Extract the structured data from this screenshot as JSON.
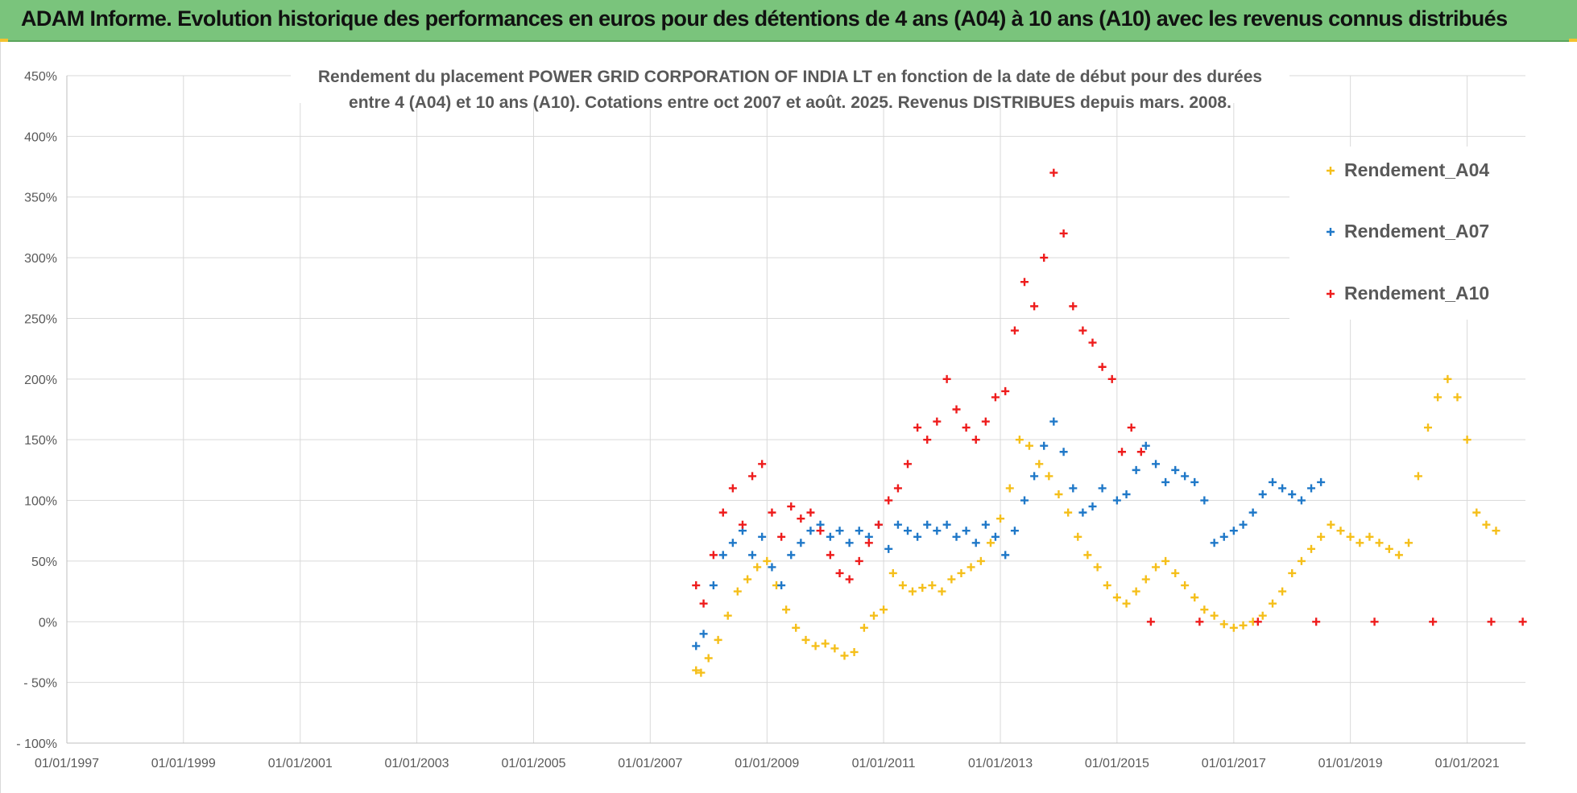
{
  "banner": {
    "title": "ADAM Informe. Evolution historique des performances en euros pour des détentions de 4 ans (A04) à 10 ans (A10) avec les revenus connus distribués"
  },
  "colors": {
    "banner_bg": "#7ac47c",
    "A04": "#f5bf1a",
    "A07": "#1f78c8",
    "A10": "#ee1c1c",
    "grid": "#d9d9d9",
    "text": "#595959"
  },
  "chart_data": {
    "type": "scatter",
    "title_lines": [
      "Rendement du placement POWER GRID CORPORATION OF INDIA LT en fonction de la date de début pour des durées",
      "entre 4 (A04) et 10 ans (A10).  Cotations entre oct 2007 et août. 2025. Revenus DISTRIBUES depuis mars. 2008."
    ],
    "x_axis": {
      "type": "date",
      "min": "1997-01-01",
      "max": "2022-01-01",
      "tick_labels": [
        "01/01/1997",
        "01/01/1999",
        "01/01/2001",
        "01/01/2003",
        "01/01/2005",
        "01/01/2007",
        "01/01/2009",
        "01/01/2011",
        "01/01/2013",
        "01/01/2015",
        "01/01/2017",
        "01/01/2019",
        "01/01/2021"
      ]
    },
    "y_axis": {
      "min": -100,
      "max": 450,
      "step": 50,
      "unit": "%",
      "tick_labels": [
        "- 100%",
        "- 50%",
        "0%",
        "50%",
        "100%",
        "150%",
        "200%",
        "250%",
        "300%",
        "350%",
        "400%",
        "450%"
      ]
    },
    "grid": true,
    "legend_position": "top-right",
    "series": [
      {
        "name": "Rendement_A04",
        "color": "#f5bf1a",
        "points": [
          [
            "2007-10-15",
            -40
          ],
          [
            "2007-11-15",
            -42
          ],
          [
            "2008-01-01",
            -30
          ],
          [
            "2008-03-01",
            -15
          ],
          [
            "2008-05-01",
            5
          ],
          [
            "2008-07-01",
            25
          ],
          [
            "2008-09-01",
            35
          ],
          [
            "2008-11-01",
            45
          ],
          [
            "2009-01-01",
            50
          ],
          [
            "2009-03-01",
            30
          ],
          [
            "2009-05-01",
            10
          ],
          [
            "2009-07-01",
            -5
          ],
          [
            "2009-09-01",
            -15
          ],
          [
            "2009-11-01",
            -20
          ],
          [
            "2010-01-01",
            -18
          ],
          [
            "2010-03-01",
            -22
          ],
          [
            "2010-05-01",
            -28
          ],
          [
            "2010-07-01",
            -25
          ],
          [
            "2010-09-01",
            -5
          ],
          [
            "2010-11-01",
            5
          ],
          [
            "2011-01-01",
            10
          ],
          [
            "2011-03-01",
            40
          ],
          [
            "2011-05-01",
            30
          ],
          [
            "2011-07-01",
            25
          ],
          [
            "2011-09-01",
            28
          ],
          [
            "2011-11-01",
            30
          ],
          [
            "2012-01-01",
            25
          ],
          [
            "2012-03-01",
            35
          ],
          [
            "2012-05-01",
            40
          ],
          [
            "2012-07-01",
            45
          ],
          [
            "2012-09-01",
            50
          ],
          [
            "2012-11-01",
            65
          ],
          [
            "2013-01-01",
            85
          ],
          [
            "2013-03-01",
            110
          ],
          [
            "2013-05-01",
            150
          ],
          [
            "2013-07-01",
            145
          ],
          [
            "2013-09-01",
            130
          ],
          [
            "2013-11-01",
            120
          ],
          [
            "2014-01-01",
            105
          ],
          [
            "2014-03-01",
            90
          ],
          [
            "2014-05-01",
            70
          ],
          [
            "2014-07-01",
            55
          ],
          [
            "2014-09-01",
            45
          ],
          [
            "2014-11-01",
            30
          ],
          [
            "2015-01-01",
            20
          ],
          [
            "2015-03-01",
            15
          ],
          [
            "2015-05-01",
            25
          ],
          [
            "2015-07-01",
            35
          ],
          [
            "2015-09-01",
            45
          ],
          [
            "2015-11-01",
            50
          ],
          [
            "2016-01-01",
            40
          ],
          [
            "2016-03-01",
            30
          ],
          [
            "2016-05-01",
            20
          ],
          [
            "2016-07-01",
            10
          ],
          [
            "2016-09-01",
            5
          ],
          [
            "2016-11-01",
            -2
          ],
          [
            "2017-01-01",
            -5
          ],
          [
            "2017-03-01",
            -3
          ],
          [
            "2017-05-01",
            0
          ],
          [
            "2017-07-01",
            5
          ],
          [
            "2017-09-01",
            15
          ],
          [
            "2017-11-01",
            25
          ],
          [
            "2018-01-01",
            40
          ],
          [
            "2018-03-01",
            50
          ],
          [
            "2018-05-01",
            60
          ],
          [
            "2018-07-01",
            70
          ],
          [
            "2018-09-01",
            80
          ],
          [
            "2018-11-01",
            75
          ],
          [
            "2019-01-01",
            70
          ],
          [
            "2019-03-01",
            65
          ],
          [
            "2019-05-01",
            70
          ],
          [
            "2019-07-01",
            65
          ],
          [
            "2019-09-01",
            60
          ],
          [
            "2019-11-01",
            55
          ],
          [
            "2020-01-01",
            65
          ],
          [
            "2020-03-01",
            120
          ],
          [
            "2020-05-01",
            160
          ],
          [
            "2020-07-01",
            185
          ],
          [
            "2020-09-01",
            200
          ],
          [
            "2020-11-01",
            185
          ],
          [
            "2021-01-01",
            150
          ],
          [
            "2021-03-01",
            90
          ],
          [
            "2021-05-01",
            80
          ],
          [
            "2021-07-01",
            75
          ]
        ]
      },
      {
        "name": "Rendement_A07",
        "color": "#1f78c8",
        "points": [
          [
            "2007-10-15",
            -20
          ],
          [
            "2007-12-01",
            -10
          ],
          [
            "2008-02-01",
            30
          ],
          [
            "2008-04-01",
            55
          ],
          [
            "2008-06-01",
            65
          ],
          [
            "2008-08-01",
            75
          ],
          [
            "2008-10-01",
            55
          ],
          [
            "2008-12-01",
            70
          ],
          [
            "2009-02-01",
            45
          ],
          [
            "2009-04-01",
            30
          ],
          [
            "2009-06-01",
            55
          ],
          [
            "2009-08-01",
            65
          ],
          [
            "2009-10-01",
            75
          ],
          [
            "2009-12-01",
            80
          ],
          [
            "2010-02-01",
            70
          ],
          [
            "2010-04-01",
            75
          ],
          [
            "2010-06-01",
            65
          ],
          [
            "2010-08-01",
            75
          ],
          [
            "2010-10-01",
            70
          ],
          [
            "2010-12-01",
            80
          ],
          [
            "2011-02-01",
            60
          ],
          [
            "2011-04-01",
            80
          ],
          [
            "2011-06-01",
            75
          ],
          [
            "2011-08-01",
            70
          ],
          [
            "2011-10-01",
            80
          ],
          [
            "2011-12-01",
            75
          ],
          [
            "2012-02-01",
            80
          ],
          [
            "2012-04-01",
            70
          ],
          [
            "2012-06-01",
            75
          ],
          [
            "2012-08-01",
            65
          ],
          [
            "2012-10-01",
            80
          ],
          [
            "2012-12-01",
            70
          ],
          [
            "2013-02-01",
            55
          ],
          [
            "2013-04-01",
            75
          ],
          [
            "2013-06-01",
            100
          ],
          [
            "2013-08-01",
            120
          ],
          [
            "2013-10-01",
            145
          ],
          [
            "2013-12-01",
            165
          ],
          [
            "2014-02-01",
            140
          ],
          [
            "2014-04-01",
            110
          ],
          [
            "2014-06-01",
            90
          ],
          [
            "2014-08-01",
            95
          ],
          [
            "2014-10-01",
            110
          ],
          [
            "2015-01-01",
            100
          ],
          [
            "2015-03-01",
            105
          ],
          [
            "2015-05-01",
            125
          ],
          [
            "2015-07-01",
            145
          ],
          [
            "2015-09-01",
            130
          ],
          [
            "2015-11-01",
            115
          ],
          [
            "2016-01-01",
            125
          ],
          [
            "2016-03-01",
            120
          ],
          [
            "2016-05-01",
            115
          ],
          [
            "2016-07-01",
            100
          ],
          [
            "2016-09-01",
            65
          ],
          [
            "2016-11-01",
            70
          ],
          [
            "2017-01-01",
            75
          ],
          [
            "2017-03-01",
            80
          ],
          [
            "2017-05-01",
            90
          ],
          [
            "2017-07-01",
            105
          ],
          [
            "2017-09-01",
            115
          ],
          [
            "2017-11-01",
            110
          ],
          [
            "2018-01-01",
            105
          ],
          [
            "2018-03-01",
            100
          ],
          [
            "2018-05-01",
            110
          ],
          [
            "2018-07-01",
            115
          ]
        ]
      },
      {
        "name": "Rendement_A10",
        "color": "#ee1c1c",
        "points": [
          [
            "2007-10-15",
            30
          ],
          [
            "2007-12-01",
            15
          ],
          [
            "2008-02-01",
            55
          ],
          [
            "2008-04-01",
            90
          ],
          [
            "2008-06-01",
            110
          ],
          [
            "2008-08-01",
            80
          ],
          [
            "2008-10-01",
            120
          ],
          [
            "2008-12-01",
            130
          ],
          [
            "2009-02-01",
            90
          ],
          [
            "2009-04-01",
            70
          ],
          [
            "2009-06-01",
            95
          ],
          [
            "2009-08-01",
            85
          ],
          [
            "2009-10-01",
            90
          ],
          [
            "2009-12-01",
            75
          ],
          [
            "2010-02-01",
            55
          ],
          [
            "2010-04-01",
            40
          ],
          [
            "2010-06-01",
            35
          ],
          [
            "2010-08-01",
            50
          ],
          [
            "2010-10-01",
            65
          ],
          [
            "2010-12-01",
            80
          ],
          [
            "2011-02-01",
            100
          ],
          [
            "2011-04-01",
            110
          ],
          [
            "2011-06-01",
            130
          ],
          [
            "2011-08-01",
            160
          ],
          [
            "2011-10-01",
            150
          ],
          [
            "2011-12-01",
            165
          ],
          [
            "2012-02-01",
            200
          ],
          [
            "2012-04-01",
            175
          ],
          [
            "2012-06-01",
            160
          ],
          [
            "2012-08-01",
            150
          ],
          [
            "2012-10-01",
            165
          ],
          [
            "2012-12-01",
            185
          ],
          [
            "2013-02-01",
            190
          ],
          [
            "2013-04-01",
            240
          ],
          [
            "2013-06-01",
            280
          ],
          [
            "2013-08-01",
            260
          ],
          [
            "2013-10-01",
            300
          ],
          [
            "2013-12-01",
            370
          ],
          [
            "2014-02-01",
            320
          ],
          [
            "2014-04-01",
            260
          ],
          [
            "2014-06-01",
            240
          ],
          [
            "2014-08-01",
            230
          ],
          [
            "2014-10-01",
            210
          ],
          [
            "2014-12-01",
            200
          ],
          [
            "2015-02-01",
            140
          ],
          [
            "2015-04-01",
            160
          ],
          [
            "2015-06-01",
            140
          ],
          [
            "2015-08-01",
            0
          ],
          [
            "2016-06-01",
            0
          ],
          [
            "2017-06-01",
            0
          ],
          [
            "2018-06-01",
            0
          ],
          [
            "2019-06-01",
            0
          ],
          [
            "2020-06-01",
            0
          ],
          [
            "2021-06-01",
            0
          ],
          [
            "2021-12-15",
            0
          ]
        ]
      }
    ]
  }
}
